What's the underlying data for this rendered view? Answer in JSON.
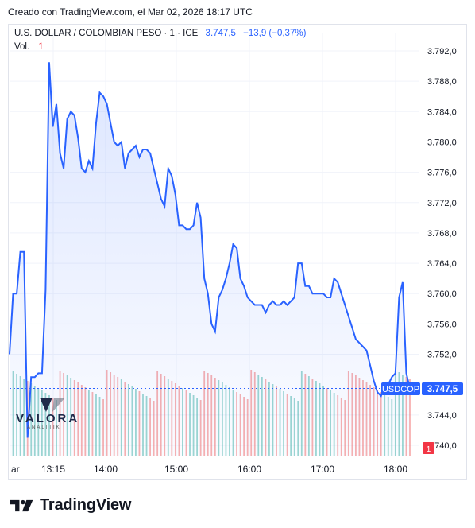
{
  "header": {
    "created_text": "Creado con TradingView.com, el Mar 02, 2026 18:17 UTC"
  },
  "legend": {
    "symbol": "U.S. DOLLAR / COLOMBIAN PESO · 1 · ICE",
    "price": "3.747,5",
    "change": "−13,9 (−0,37%)",
    "vol_label": "Vol.",
    "vol_value": "1"
  },
  "price_tag": {
    "symbol": "USDCOP",
    "value": "3.747,5",
    "vol_badge": "1"
  },
  "watermark": {
    "text": "VALORA",
    "sub": "ANALITIK"
  },
  "brand": {
    "name": "TradingView"
  },
  "colors": {
    "line": "#2962ff",
    "area_top": "#2962ff",
    "up_volume": "#26a69a",
    "down_volume": "#ef5350",
    "tag_bg": "#2962ff",
    "vol_badge_bg": "#f23645",
    "grid": "#f0f3fa"
  },
  "chart_data": {
    "type": "area",
    "x_labels": [
      "ar",
      "13:15",
      "14:00",
      "15:00",
      "16:00",
      "17:00",
      "18:00"
    ],
    "y_ticks": [
      "3.792,0",
      "3.788,0",
      "3.784,0",
      "3.780,0",
      "3.776,0",
      "3.772,0",
      "3.768,0",
      "3.764,0",
      "3.760,0",
      "3.756,0",
      "3.752,0",
      "3.744,0",
      "3.740,0"
    ],
    "ylim": [
      3740.0,
      3792.0
    ],
    "last_value": 3747.5,
    "grid": true,
    "series": [
      {
        "values": [
          3752.0,
          3760.0,
          3760.0,
          3765.5,
          3765.5,
          3741.0,
          3749.0,
          3749.0,
          3749.5,
          3749.5,
          3760.5,
          3790.5,
          3782.0,
          3785.0,
          3778.5,
          3776.5,
          3783.0,
          3784.0,
          3783.5,
          3780.5,
          3776.5,
          3776.0,
          3777.5,
          3776.5,
          3782.5,
          3786.5,
          3786.0,
          3785.0,
          3782.5,
          3780.0,
          3779.5,
          3780.0,
          3776.5,
          3778.5,
          3779.0,
          3779.5,
          3778.0,
          3779.0,
          3779.0,
          3778.5,
          3776.5,
          3774.5,
          3772.5,
          3771.5,
          3776.5,
          3775.5,
          3773.0,
          3769.0,
          3769.0,
          3768.5,
          3768.5,
          3769.0,
          3772.0,
          3770.0,
          3762.0,
          3760.0,
          3756.0,
          3755.0,
          3759.5,
          3760.5,
          3762.0,
          3764.0,
          3766.5,
          3766.0,
          3762.0,
          3761.0,
          3759.5,
          3759.0,
          3758.5,
          3758.5,
          3758.5,
          3757.5,
          3758.5,
          3759.0,
          3758.5,
          3758.5,
          3759.0,
          3758.5,
          3759.0,
          3759.5,
          3764.0,
          3764.0,
          3761.0,
          3761.0,
          3760.0,
          3760.0,
          3760.0,
          3760.0,
          3759.5,
          3759.5,
          3762.0,
          3761.5,
          3760.0,
          3758.5,
          3757.0,
          3755.5,
          3754.0,
          3753.5,
          3753.0,
          3752.5,
          3750.5,
          3748.5,
          3747.0,
          3746.5,
          3748.0,
          3748.0,
          3749.0,
          3749.5,
          3759.5,
          3761.5,
          3749.5,
          3747.5
        ]
      }
    ]
  }
}
